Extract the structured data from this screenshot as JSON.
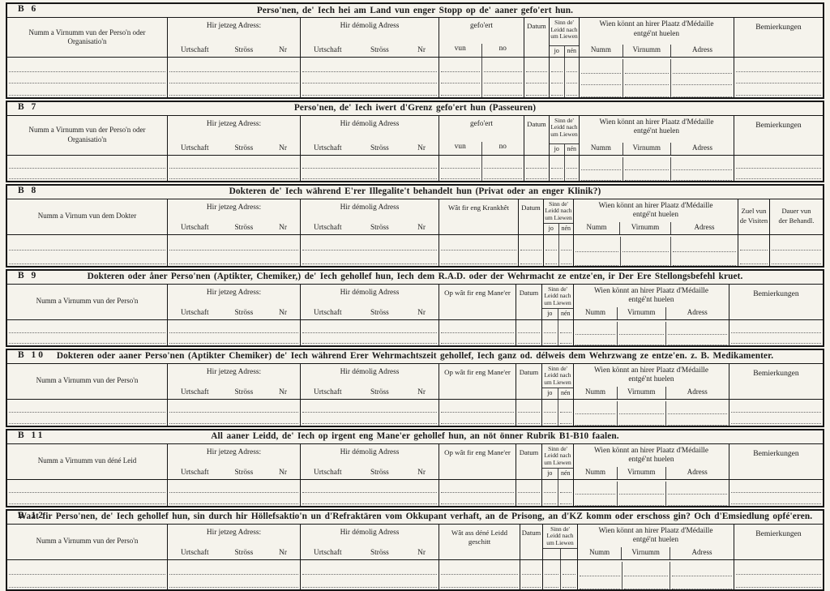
{
  "colors": {
    "ink": "#1c1c1c",
    "paper": "#f5f3ec"
  },
  "common": {
    "jetzeg_adress": "Hir jetzeg Adress:",
    "demolig_adress": "Hir démolig Adress",
    "urtschaft": "Urtschaft",
    "stross": "Ströss",
    "nr": "Nr",
    "gefoert": "gefo'ert",
    "vun": "vun",
    "no": "no",
    "datum": "Datum",
    "sinn_1": "Sinn de'",
    "sinn_2": "Leidd nach",
    "sinn_3": "um Liewen",
    "jo": "jo",
    "nen": "nén",
    "medaille_1": "Wien könnt an hirer Plaatz d'Médaille",
    "medaille_2": "entgé'nt huelen",
    "numm": "Numm",
    "virnumm": "Virnumm",
    "adress": "Adress",
    "bemierkungen": "Bemierkungen",
    "zuel_1": "Zuel vun",
    "zuel_2": "de Visiten",
    "dauer_1": "Dauer vun",
    "dauer_2": "der Behandl."
  },
  "sections": [
    {
      "id": "B 6",
      "title": "Perso'nen, de' Iech hei am Land vun enger Stopp op de' aaner gefo'ert hun.",
      "name_col": "Numm a Virnumm vun der Perso'n oder Organisatio'n",
      "rows": 3
    },
    {
      "id": "B 7",
      "title": "Perso'nen, de' Iech iwert d'Grenz gefo'ert hun (Passeuren)",
      "name_col": "Numm a Virnumm vun der Perso'n oder Organisatio'n",
      "rows": 2
    },
    {
      "id": "B 8",
      "title": "Dokteren de' Iech während E'rer Illegalite't behandelt hun (Privat oder an enger Klinik?)",
      "name_col": "Numm a Virnum vun dem Dokter",
      "mid_col": "Wât fir eng Krankhêt",
      "rows": 2
    },
    {
      "id": "B 9",
      "title": "Dokteren oder åner Perso'nen (Aptikter, Chemiker,) de' Iech gehollef hun, Iech dem R.A.D. oder der Wehrmacht ze entze'en, ir Der Ere Stellongsbefehl kruet.",
      "name_col": "Numm a Virnumm vun der Perso'n",
      "mid_col": "Op wât fir eng Mane'er",
      "rows": 2
    },
    {
      "id": "B 10",
      "title": "Dokteren oder aaner Perso'nen (Aptikter Chemiker) de' Iech während Erer Wehrmachtszeit gehollef, Iech ganz od. délweis dem Wehrzwang ze entze'en. z. B. Medikamenter.",
      "name_col": "Numm a Virnumm vun der Perso'n",
      "mid_col": "Op wât fir eng Mane'er",
      "rows": 2
    },
    {
      "id": "B 11",
      "title": "All aaner Leidd, de' Iech op irgent eng Mane'er gehollef hun, an nöt önner Rubrik B1-B10 faalen.",
      "name_col": "Numm a Virnumm vun déné Leid",
      "mid_col": "Op wât fir eng Mane'er",
      "rows": 2
    },
    {
      "id": "B 12",
      "title": "Waat fir Perso'nen, de' Iech gehollef hun, sin durch hir Höllefsaktio'n un d'Refraktären vom Okkupant verhaft, an de Prisong, an d'KZ komm oder erschoss gin? Och d'Emsiedlung opfé'eren.",
      "name_col": "Numm a Virnumm vun der Perso'n",
      "mid_col": "Wât ass déné Leidd geschitt",
      "rows": 2
    }
  ]
}
